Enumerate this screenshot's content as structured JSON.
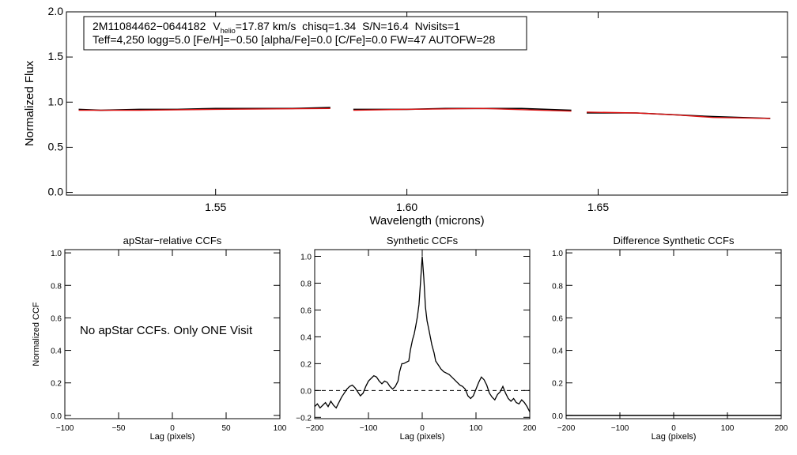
{
  "colors": {
    "observed": "#000000",
    "model": "#dd1111",
    "axis": "#000000"
  },
  "chart_data": [
    {
      "type": "line",
      "title": "",
      "xlabel": "Wavelength (microns)",
      "ylabel": "Normalized Flux",
      "xlim": [
        1.511,
        1.6995
      ],
      "ylim": [
        -0.03,
        2.0
      ],
      "xticks": [
        1.55,
        1.6,
        1.65
      ],
      "xtick_labels": [
        "1.55",
        "1.60",
        "1.65"
      ],
      "yticks": [
        0.0,
        0.5,
        1.0,
        1.5,
        2.0
      ],
      "ytick_labels": [
        "0.0",
        "0.5",
        "1.0",
        "1.5",
        "2.0"
      ],
      "chips": [
        [
          1.5142,
          1.58
        ],
        [
          1.586,
          1.643
        ],
        [
          1.647,
          1.695
        ]
      ],
      "series": [
        {
          "name": "observed spectrum",
          "color": "#000000",
          "points": [
            [
              1.5142,
              0.92
            ],
            [
              1.52,
              0.91
            ],
            [
              1.53,
              0.92
            ],
            [
              1.54,
              0.92
            ],
            [
              1.55,
              0.93
            ],
            [
              1.56,
              0.93
            ],
            [
              1.57,
              0.93
            ],
            [
              1.58,
              0.94
            ],
            [
              1.586,
              0.92
            ],
            [
              1.6,
              0.92
            ],
            [
              1.61,
              0.93
            ],
            [
              1.62,
              0.93
            ],
            [
              1.63,
              0.93
            ],
            [
              1.643,
              0.91
            ],
            [
              1.647,
              0.88
            ],
            [
              1.66,
              0.88
            ],
            [
              1.67,
              0.86
            ],
            [
              1.68,
              0.84
            ],
            [
              1.695,
              0.82
            ]
          ]
        },
        {
          "name": "model spectrum",
          "color": "#dd1111",
          "points": [
            [
              1.5142,
              0.91
            ],
            [
              1.53,
              0.91
            ],
            [
              1.55,
              0.92
            ],
            [
              1.58,
              0.93
            ],
            [
              1.586,
              0.91
            ],
            [
              1.6,
              0.92
            ],
            [
              1.62,
              0.93
            ],
            [
              1.643,
              0.9
            ],
            [
              1.647,
              0.89
            ],
            [
              1.66,
              0.88
            ],
            [
              1.67,
              0.86
            ],
            [
              1.68,
              0.83
            ],
            [
              1.695,
              0.82
            ]
          ]
        }
      ],
      "annotation": {
        "line1_id": "2M11084462−0644182",
        "line1_v": "V",
        "line1_vsub": "helio",
        "line1_rest": "=17.87 km/s  chisq=1.34  S/N=16.4  Nvisits=1",
        "line2": "Teff=4,250 logg=5.0 [Fe/H]=−0.50 [alpha/Fe]=0.0 [C/Fe]=0.0 FW=47 AUTOFW=28"
      }
    },
    {
      "type": "line",
      "title": "apStar−relative CCFs",
      "xlabel": "Lag (pixels)",
      "ylabel": "Normalized CCF",
      "xlim": [
        -100,
        100
      ],
      "ylim": [
        -0.02,
        1.02
      ],
      "xticks": [
        -100,
        -50,
        0,
        50,
        100
      ],
      "xtick_labels": [
        "−100",
        "−50",
        "0",
        "50",
        "100"
      ],
      "yticks": [
        0.0,
        0.2,
        0.4,
        0.6,
        0.8,
        1.0
      ],
      "ytick_labels": [
        "0.0",
        "0.2",
        "0.4",
        "0.6",
        "0.8",
        "1.0"
      ],
      "message": "No apStar CCFs.  Only ONE Visit",
      "series": []
    },
    {
      "type": "line",
      "title": "Synthetic CCFs",
      "xlabel": "Lag (pixels)",
      "ylabel": "",
      "xlim": [
        -200,
        200
      ],
      "ylim": [
        -0.21,
        1.05
      ],
      "xticks": [
        -200,
        -100,
        0,
        100,
        200
      ],
      "xtick_labels": [
        "−200",
        "−100",
        "0",
        "100",
        "200"
      ],
      "yticks": [
        -0.2,
        0.0,
        0.2,
        0.4,
        0.6,
        0.8,
        1.0
      ],
      "ytick_labels": [
        "−0.2",
        "0.0",
        "0.2",
        "0.4",
        "0.6",
        "0.8",
        "1.0"
      ],
      "reference_line": 0.0,
      "series": [
        {
          "name": "synthetic CCF",
          "color": "#000000",
          "points": [
            [
              -200,
              -0.12
            ],
            [
              -195,
              -0.1
            ],
            [
              -190,
              -0.13
            ],
            [
              -185,
              -0.11
            ],
            [
              -180,
              -0.09
            ],
            [
              -175,
              -0.12
            ],
            [
              -170,
              -0.08
            ],
            [
              -165,
              -0.11
            ],
            [
              -160,
              -0.13
            ],
            [
              -155,
              -0.09
            ],
            [
              -150,
              -0.05
            ],
            [
              -145,
              -0.02
            ],
            [
              -140,
              0.01
            ],
            [
              -135,
              0.03
            ],
            [
              -130,
              0.04
            ],
            [
              -125,
              0.02
            ],
            [
              -120,
              -0.01
            ],
            [
              -115,
              -0.04
            ],
            [
              -110,
              -0.02
            ],
            [
              -105,
              0.03
            ],
            [
              -100,
              0.07
            ],
            [
              -95,
              0.09
            ],
            [
              -90,
              0.11
            ],
            [
              -85,
              0.1
            ],
            [
              -80,
              0.07
            ],
            [
              -75,
              0.05
            ],
            [
              -70,
              0.07
            ],
            [
              -65,
              0.06
            ],
            [
              -60,
              0.03
            ],
            [
              -55,
              0.01
            ],
            [
              -50,
              0.03
            ],
            [
              -45,
              0.07
            ],
            [
              -42,
              0.14
            ],
            [
              -38,
              0.2
            ],
            [
              -35,
              0.2
            ],
            [
              -30,
              0.21
            ],
            [
              -25,
              0.22
            ],
            [
              -22,
              0.3
            ],
            [
              -18,
              0.38
            ],
            [
              -15,
              0.42
            ],
            [
              -12,
              0.48
            ],
            [
              -9,
              0.55
            ],
            [
              -6,
              0.64
            ],
            [
              -3,
              0.82
            ],
            [
              0,
              1.0
            ],
            [
              3,
              0.84
            ],
            [
              6,
              0.62
            ],
            [
              9,
              0.52
            ],
            [
              12,
              0.46
            ],
            [
              15,
              0.4
            ],
            [
              18,
              0.34
            ],
            [
              22,
              0.28
            ],
            [
              25,
              0.22
            ],
            [
              30,
              0.19
            ],
            [
              35,
              0.16
            ],
            [
              40,
              0.14
            ],
            [
              45,
              0.13
            ],
            [
              50,
              0.12
            ],
            [
              55,
              0.1
            ],
            [
              60,
              0.08
            ],
            [
              65,
              0.06
            ],
            [
              70,
              0.04
            ],
            [
              75,
              0.03
            ],
            [
              80,
              0.01
            ],
            [
              85,
              -0.04
            ],
            [
              90,
              -0.06
            ],
            [
              95,
              -0.04
            ],
            [
              100,
              0.01
            ],
            [
              105,
              0.06
            ],
            [
              110,
              0.1
            ],
            [
              115,
              0.08
            ],
            [
              120,
              0.04
            ],
            [
              125,
              -0.02
            ],
            [
              130,
              -0.05
            ],
            [
              135,
              -0.07
            ],
            [
              140,
              -0.03
            ],
            [
              145,
              -0.01
            ],
            [
              150,
              0.03
            ],
            [
              155,
              -0.02
            ],
            [
              160,
              -0.06
            ],
            [
              165,
              -0.08
            ],
            [
              170,
              -0.06
            ],
            [
              175,
              -0.09
            ],
            [
              180,
              -0.1
            ],
            [
              185,
              -0.07
            ],
            [
              190,
              -0.09
            ],
            [
              195,
              -0.12
            ],
            [
              200,
              -0.16
            ]
          ]
        }
      ]
    },
    {
      "type": "line",
      "title": "Difference Synthetic CCFs",
      "xlabel": "Lag (pixels)",
      "ylabel": "",
      "xlim": [
        -200,
        200
      ],
      "ylim": [
        -0.02,
        1.02
      ],
      "xticks": [
        -200,
        -100,
        0,
        100,
        200
      ],
      "xtick_labels": [
        "−200",
        "−100",
        "0",
        "100",
        "200"
      ],
      "yticks": [
        0.0,
        0.2,
        0.4,
        0.6,
        0.8,
        1.0
      ],
      "ytick_labels": [
        "0.0",
        "0.2",
        "0.4",
        "0.6",
        "0.8",
        "1.0"
      ],
      "series": [
        {
          "name": "difference CCF",
          "color": "#000000",
          "points": [
            [
              -200,
              0.0
            ],
            [
              200,
              0.0
            ]
          ]
        }
      ]
    }
  ]
}
